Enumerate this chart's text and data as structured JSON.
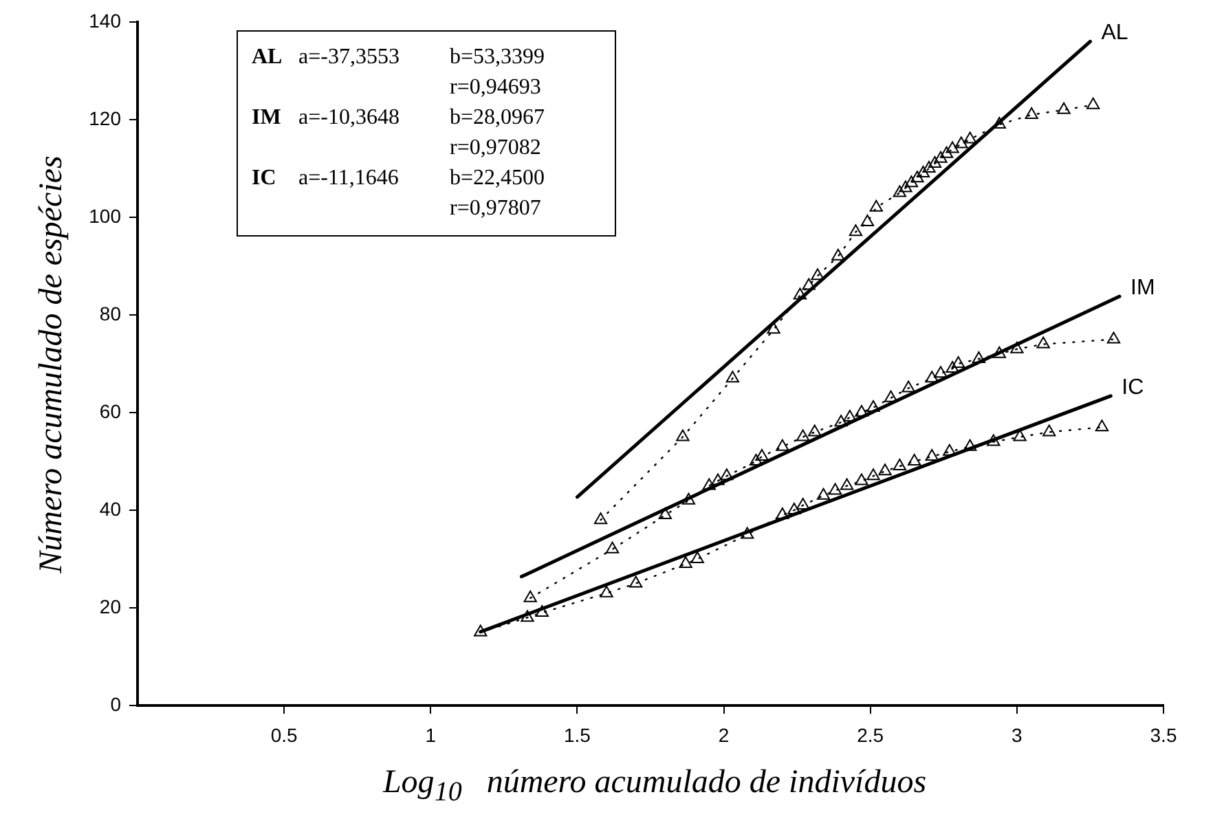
{
  "chart_data": {
    "type": "line",
    "xlabel": "Log$_{10}$   número acumulado de indivíduos",
    "ylabel": "Número acumulado de espécies",
    "xlim": [
      0,
      3.5
    ],
    "xticks": [
      0.5,
      1,
      1.5,
      2,
      2.5,
      3,
      3.5
    ],
    "ylim": [
      0,
      140
    ],
    "yticks": [
      0,
      20,
      40,
      60,
      80,
      100,
      120,
      140
    ],
    "grid": false,
    "legend": false,
    "annotations": [
      "AL",
      "a=-37,3553",
      "b=53,3399",
      "r=0,94693",
      "IM",
      "a=-10,3648",
      "b=28,0967",
      "r=0,97082",
      "IC",
      "a=-11,1646",
      "b=22,4500",
      "r=0,97807"
    ],
    "series": [
      {
        "color": "#000000",
        "marker": "triangle",
        "line_style": "dotted",
        "x": [
          1.58,
          1.86,
          2.03,
          2.17,
          2.26,
          2.29,
          2.32,
          2.39,
          2.45,
          2.49,
          2.52,
          2.6,
          2.62,
          2.64,
          2.66,
          2.68,
          2.7,
          2.72,
          2.74,
          2.76,
          2.78,
          2.81,
          2.84,
          2.94,
          3.05,
          3.16,
          3.26
        ],
        "values": [
          38,
          55,
          67,
          77,
          84,
          86,
          88,
          92,
          97,
          99,
          102,
          105,
          106,
          107,
          108,
          109,
          110,
          111,
          112,
          113,
          114,
          115,
          116,
          119,
          121,
          122,
          123
        ]
      },
      {
        "color": "#000000",
        "marker": "triangle",
        "line_style": "dotted",
        "x": [
          1.34,
          1.62,
          1.8,
          1.88,
          1.95,
          1.98,
          2.01,
          2.11,
          2.13,
          2.2,
          2.27,
          2.31,
          2.4,
          2.43,
          2.47,
          2.51,
          2.57,
          2.63,
          2.71,
          2.74,
          2.78,
          2.8,
          2.87,
          2.94,
          3.0,
          3.09,
          3.33
        ],
        "values": [
          22,
          32,
          39,
          42,
          45,
          46,
          47,
          50,
          51,
          53,
          55,
          56,
          58,
          59,
          60,
          61,
          63,
          65,
          67,
          68,
          69,
          70,
          71,
          72,
          73,
          74,
          75
        ]
      },
      {
        "color": "#000000",
        "marker": "triangle",
        "line_style": "dotted",
        "x": [
          1.17,
          1.33,
          1.38,
          1.6,
          1.7,
          1.87,
          1.91,
          2.08,
          2.2,
          2.24,
          2.27,
          2.34,
          2.38,
          2.42,
          2.47,
          2.51,
          2.55,
          2.6,
          2.65,
          2.71,
          2.77,
          2.84,
          2.92,
          3.01,
          3.11,
          3.29
        ],
        "values": [
          15,
          18,
          19,
          23,
          25,
          29,
          30,
          35,
          39,
          40,
          41,
          43,
          44,
          45,
          46,
          47,
          48,
          49,
          50,
          51,
          52,
          53,
          54,
          55,
          56,
          57
        ]
      },
      {
        "name": "AL",
        "color": "#000000",
        "marker": "none",
        "line_style": "solid",
        "x": [
          1.5,
          3.25
        ],
        "values": [
          42.7,
          136
        ]
      },
      {
        "name": "IM",
        "color": "#000000",
        "marker": "none",
        "line_style": "solid",
        "x": [
          1.31,
          3.35
        ],
        "values": [
          26.4,
          83.8
        ]
      },
      {
        "name": "IC",
        "color": "#000000",
        "marker": "none",
        "line_style": "solid",
        "x": [
          1.17,
          3.32
        ],
        "values": [
          15.1,
          63.4
        ]
      }
    ]
  }
}
